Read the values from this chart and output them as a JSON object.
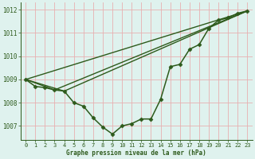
{
  "xlabel": "Graphe pression niveau de la mer (hPa)",
  "bg_color": "#dff2ee",
  "grid_color": "#e8b0b0",
  "line_color": "#2d5a1b",
  "xlim": [
    -0.5,
    23.5
  ],
  "ylim": [
    1006.4,
    1012.3
  ],
  "yticks": [
    1007,
    1008,
    1009,
    1010,
    1011,
    1012
  ],
  "xticks": [
    0,
    1,
    2,
    3,
    4,
    5,
    6,
    7,
    8,
    9,
    10,
    11,
    12,
    13,
    14,
    15,
    16,
    17,
    18,
    19,
    20,
    21,
    22,
    23
  ],
  "series": [
    {
      "x": [
        0,
        1,
        2,
        3,
        4,
        5,
        6,
        7,
        8,
        9,
        10,
        11,
        12,
        13,
        14,
        15,
        16,
        17,
        18,
        19,
        20,
        21,
        22,
        23
      ],
      "y": [
        1009.0,
        1008.7,
        1008.65,
        1008.55,
        1008.5,
        1008.0,
        1007.85,
        1007.35,
        1006.95,
        1006.65,
        1007.0,
        1007.1,
        1007.3,
        1007.3,
        1008.15,
        1009.55,
        1009.65,
        1010.3,
        1010.5,
        1011.2,
        1011.55,
        1011.65,
        1011.85,
        1011.95
      ],
      "marker": "D",
      "markersize": 2.5,
      "linewidth": 1.1,
      "has_marker": true
    },
    {
      "x": [
        0,
        23
      ],
      "y": [
        1009.0,
        1011.95
      ],
      "marker": null,
      "markersize": 0,
      "linewidth": 1.0,
      "has_marker": false
    },
    {
      "x": [
        0,
        3,
        23
      ],
      "y": [
        1009.0,
        1008.55,
        1011.95
      ],
      "marker": null,
      "markersize": 0,
      "linewidth": 1.0,
      "has_marker": false
    },
    {
      "x": [
        0,
        4,
        23
      ],
      "y": [
        1009.0,
        1008.5,
        1011.95
      ],
      "marker": null,
      "markersize": 0,
      "linewidth": 1.0,
      "has_marker": false
    }
  ]
}
